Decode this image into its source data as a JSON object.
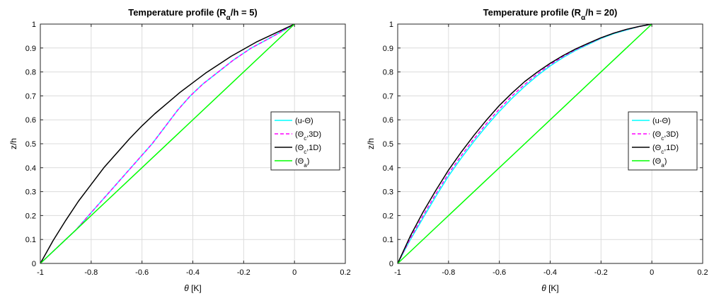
{
  "chart_data": [
    {
      "type": "line",
      "title": {
        "main": "Temperature profile (R",
        "sub": "α",
        "rest": "/h = 5)"
      },
      "xlabel": {
        "sym": "θ",
        "rest": " [K]"
      },
      "ylabel": "z/h",
      "xlim": [
        -1,
        0.2
      ],
      "ylim": [
        0,
        1
      ],
      "xticks": [
        -1,
        -0.8,
        -0.6,
        -0.4,
        -0.2,
        0,
        0.2
      ],
      "xtick_labels": [
        "-1",
        "-0.8",
        "-0.6",
        "-0.4",
        "-0.2",
        "0",
        "0.2"
      ],
      "yticks": [
        0,
        0.1,
        0.2,
        0.3,
        0.4,
        0.5,
        0.6,
        0.7,
        0.8,
        0.9,
        1
      ],
      "ytick_labels": [
        "0",
        "0.1",
        "0.2",
        "0.3",
        "0.4",
        "0.5",
        "0.6",
        "0.7",
        "0.8",
        "0.9",
        "1"
      ],
      "grid": true,
      "legend_position": "right",
      "series": [
        {
          "name": {
            "main": "(u-Θ)",
            "sub": "",
            "rest": ""
          },
          "color": "#00ffff",
          "dash": "solid",
          "x": [
            -1,
            -0.92,
            -0.86,
            -0.81,
            -0.76,
            -0.71,
            -0.66,
            -0.61,
            -0.56,
            -0.51,
            -0.46,
            -0.41,
            -0.36,
            -0.3,
            -0.24,
            -0.17,
            -0.1,
            -0.04,
            0
          ],
          "y": [
            0,
            0.08,
            0.14,
            0.2,
            0.26,
            0.32,
            0.38,
            0.44,
            0.5,
            0.57,
            0.64,
            0.7,
            0.75,
            0.8,
            0.85,
            0.9,
            0.94,
            0.975,
            1
          ]
        },
        {
          "name": {
            "main": "(Θ",
            "sub": "c",
            "rest": ",3D)"
          },
          "color": "#ff00ff",
          "dash": "dashed",
          "x": [
            -1,
            -0.92,
            -0.86,
            -0.81,
            -0.76,
            -0.71,
            -0.66,
            -0.61,
            -0.56,
            -0.51,
            -0.46,
            -0.41,
            -0.36,
            -0.3,
            -0.24,
            -0.17,
            -0.1,
            -0.04,
            0
          ],
          "y": [
            0,
            0.08,
            0.14,
            0.2,
            0.26,
            0.32,
            0.38,
            0.44,
            0.5,
            0.57,
            0.64,
            0.7,
            0.75,
            0.8,
            0.85,
            0.9,
            0.94,
            0.975,
            1
          ]
        },
        {
          "name": {
            "main": "(Θ",
            "sub": "c",
            "rest": ",1D)"
          },
          "color": "#000000",
          "dash": "solid",
          "x": [
            -1,
            -0.95,
            -0.9,
            -0.85,
            -0.8,
            -0.75,
            -0.7,
            -0.65,
            -0.6,
            -0.55,
            -0.5,
            -0.45,
            -0.4,
            -0.35,
            -0.3,
            -0.25,
            -0.2,
            -0.15,
            -0.1,
            -0.05,
            0
          ],
          "y": [
            0,
            0.095,
            0.18,
            0.26,
            0.33,
            0.4,
            0.46,
            0.52,
            0.575,
            0.625,
            0.67,
            0.715,
            0.755,
            0.795,
            0.83,
            0.865,
            0.895,
            0.925,
            0.95,
            0.975,
            1
          ]
        },
        {
          "name": {
            "main": "(Θ",
            "sub": "a",
            "rest": ")"
          },
          "color": "#00ff00",
          "dash": "solid",
          "x": [
            -1,
            0
          ],
          "y": [
            0,
            1
          ]
        }
      ]
    },
    {
      "type": "line",
      "title": {
        "main": "Temperature profile (R",
        "sub": "α",
        "rest": "/h = 20)"
      },
      "xlabel": {
        "sym": "θ",
        "rest": " [K]"
      },
      "ylabel": "z/h",
      "xlim": [
        -1,
        0.2
      ],
      "ylim": [
        0,
        1
      ],
      "xticks": [
        -1,
        -0.8,
        -0.6,
        -0.4,
        -0.2,
        0,
        0.2
      ],
      "xtick_labels": [
        "-1",
        "-0.8",
        "-0.6",
        "-0.4",
        "-0.2",
        "0",
        "0.2"
      ],
      "yticks": [
        0,
        0.1,
        0.2,
        0.3,
        0.4,
        0.5,
        0.6,
        0.7,
        0.8,
        0.9,
        1
      ],
      "ytick_labels": [
        "0",
        "0.1",
        "0.2",
        "0.3",
        "0.4",
        "0.5",
        "0.6",
        "0.7",
        "0.8",
        "0.9",
        "1"
      ],
      "grid": true,
      "legend_position": "right",
      "series": [
        {
          "name": {
            "main": "(u-Θ)",
            "sub": "",
            "rest": ""
          },
          "color": "#00ffff",
          "dash": "solid",
          "x": [
            -1,
            -0.95,
            -0.9,
            -0.85,
            -0.8,
            -0.75,
            -0.7,
            -0.65,
            -0.6,
            -0.55,
            -0.5,
            -0.45,
            -0.4,
            -0.35,
            -0.3,
            -0.25,
            -0.2,
            -0.15,
            -0.1,
            -0.05,
            0
          ],
          "y": [
            0,
            0.1,
            0.19,
            0.28,
            0.365,
            0.44,
            0.51,
            0.575,
            0.635,
            0.69,
            0.74,
            0.785,
            0.825,
            0.86,
            0.89,
            0.915,
            0.94,
            0.96,
            0.975,
            0.99,
            1
          ]
        },
        {
          "name": {
            "main": "(Θ",
            "sub": "c",
            "rest": ",3D)"
          },
          "color": "#ff00ff",
          "dash": "dashed",
          "x": [
            -1,
            -0.95,
            -0.9,
            -0.85,
            -0.8,
            -0.75,
            -0.7,
            -0.65,
            -0.6,
            -0.55,
            -0.5,
            -0.45,
            -0.4,
            -0.35,
            -0.3,
            -0.25,
            -0.2,
            -0.15,
            -0.1,
            -0.05,
            0
          ],
          "y": [
            0,
            0.105,
            0.2,
            0.29,
            0.375,
            0.45,
            0.52,
            0.585,
            0.645,
            0.7,
            0.748,
            0.792,
            0.83,
            0.864,
            0.893,
            0.918,
            0.942,
            0.962,
            0.977,
            0.99,
            1
          ]
        },
        {
          "name": {
            "main": "(Θ",
            "sub": "c",
            "rest": ",1D)"
          },
          "color": "#000000",
          "dash": "solid",
          "x": [
            -1,
            -0.95,
            -0.9,
            -0.85,
            -0.8,
            -0.75,
            -0.7,
            -0.65,
            -0.6,
            -0.55,
            -0.5,
            -0.45,
            -0.4,
            -0.35,
            -0.3,
            -0.25,
            -0.2,
            -0.15,
            -0.1,
            -0.05,
            0
          ],
          "y": [
            0,
            0.115,
            0.215,
            0.305,
            0.39,
            0.465,
            0.535,
            0.6,
            0.66,
            0.712,
            0.76,
            0.8,
            0.836,
            0.868,
            0.896,
            0.92,
            0.943,
            0.962,
            0.978,
            0.99,
            1
          ]
        },
        {
          "name": {
            "main": "(Θ",
            "sub": "a",
            "rest": ")"
          },
          "color": "#00ff00",
          "dash": "solid",
          "x": [
            -1,
            0
          ],
          "y": [
            0,
            1
          ]
        }
      ]
    }
  ]
}
